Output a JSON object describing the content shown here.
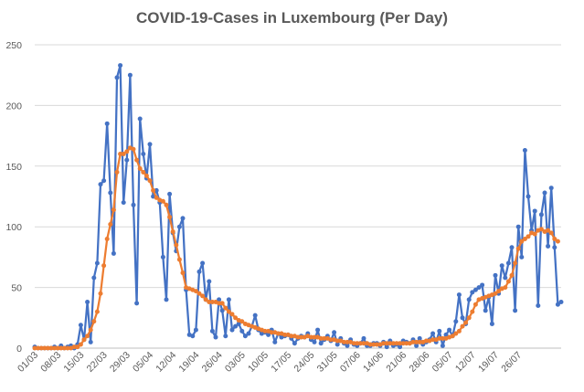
{
  "chart_data": {
    "type": "line",
    "title": "COVID-19-Cases in Luxembourg (Per Day)",
    "xlabel": "",
    "ylabel": "",
    "ylim": [
      0,
      250
    ],
    "yticks": [
      0,
      50,
      100,
      150,
      200,
      250
    ],
    "grid": true,
    "legend": "none",
    "x_start": "01/03",
    "xticks": [
      "01/03",
      "08/03",
      "15/03",
      "22/03",
      "29/03",
      "05/04",
      "12/04",
      "19/04",
      "26/04",
      "03/05",
      "10/05",
      "17/05",
      "24/05",
      "31/05",
      "07/06",
      "14/06",
      "21/06",
      "28/06",
      "05/07",
      "12/07",
      "19/07",
      "26/07"
    ],
    "series": [
      {
        "color": "#4472C4",
        "values": [
          1,
          0,
          0,
          0,
          0,
          0,
          1,
          0,
          2,
          0,
          1,
          2,
          0,
          3,
          19,
          7,
          38,
          5,
          58,
          70,
          135,
          138,
          185,
          128,
          78,
          223,
          233,
          120,
          155,
          225,
          118,
          37,
          189,
          160,
          140,
          168,
          125,
          130,
          120,
          75,
          40,
          127,
          95,
          80,
          100,
          107,
          48,
          11,
          10,
          15,
          63,
          70,
          40,
          55,
          14,
          9,
          40,
          31,
          10,
          40,
          15,
          18,
          20,
          14,
          10,
          12,
          18,
          27,
          15,
          12,
          13,
          11,
          15,
          5,
          12,
          9,
          10,
          11,
          8,
          4,
          8,
          10,
          9,
          12,
          7,
          5,
          15,
          4,
          7,
          10,
          6,
          13,
          3,
          8,
          4,
          2,
          7,
          3,
          2,
          4,
          8,
          2,
          2,
          4,
          4,
          2,
          5,
          1,
          6,
          2,
          3,
          1,
          6,
          5,
          4,
          7,
          2,
          8,
          3,
          5,
          7,
          12,
          5,
          14,
          2,
          11,
          15,
          10,
          22,
          44,
          25,
          20,
          40,
          46,
          48,
          50,
          52,
          31,
          42,
          20,
          60,
          45,
          68,
          58,
          70,
          83,
          31,
          100,
          75,
          163,
          125,
          97,
          113,
          35,
          110,
          128,
          84,
          132,
          83,
          36,
          38
        ],
        "color_name": "blue"
      },
      {
        "color": "#ED7D31",
        "values": [
          0,
          0,
          0,
          0,
          0,
          0,
          0,
          0,
          0,
          0,
          0,
          0,
          1,
          1,
          3,
          7,
          10,
          15,
          22,
          30,
          45,
          68,
          90,
          102,
          114,
          145,
          160,
          160,
          162,
          165,
          164,
          155,
          148,
          145,
          142,
          138,
          130,
          124,
          122,
          121,
          118,
          108,
          96,
          85,
          73,
          62,
          50,
          49,
          48,
          47,
          45,
          43,
          40,
          38,
          38,
          38,
          37,
          37,
          33,
          30,
          28,
          25,
          23,
          22,
          20,
          19,
          18,
          17,
          16,
          15,
          14,
          14,
          13,
          13,
          12,
          12,
          11,
          11,
          10,
          10,
          9,
          9,
          9,
          10,
          9,
          9,
          9,
          8,
          8,
          8,
          7,
          7,
          6,
          6,
          5,
          5,
          5,
          4,
          4,
          4,
          4,
          4,
          3,
          3,
          3,
          3,
          4,
          4,
          4,
          4,
          4,
          4,
          4,
          4,
          4,
          5,
          5,
          5,
          5,
          6,
          6,
          7,
          7,
          8,
          8,
          8,
          9,
          10,
          12,
          14,
          18,
          21,
          25,
          30,
          36,
          40,
          41,
          42,
          43,
          44,
          45,
          47,
          49,
          50,
          55,
          60,
          70,
          82,
          88,
          90,
          92,
          95,
          94,
          97,
          98,
          96,
          97,
          95,
          90,
          88
        ],
        "color_name": "orange"
      }
    ]
  }
}
